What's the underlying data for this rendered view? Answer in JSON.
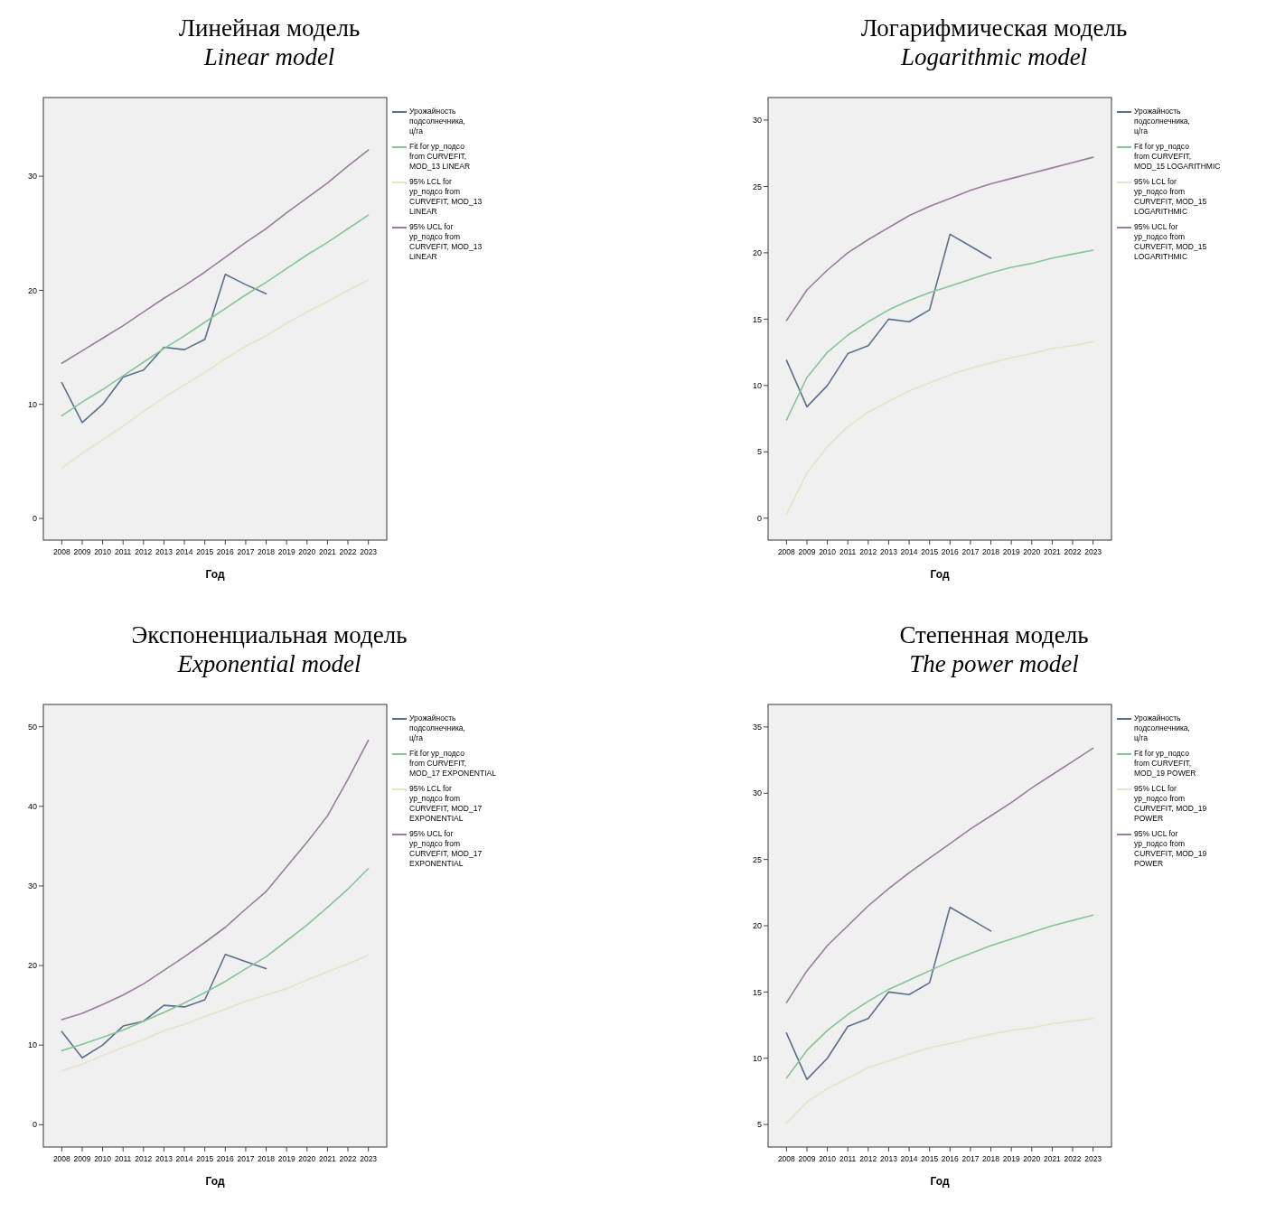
{
  "chart_data": [
    {
      "type": "line",
      "title": "Линейная модель",
      "subtitle": "Linear model",
      "xlabel": "Год",
      "legend": "right",
      "categories": [
        "2008",
        "2009",
        "2010",
        "2011",
        "2012",
        "2013",
        "2014",
        "2015",
        "2016",
        "2017",
        "2018",
        "2019",
        "2020",
        "2021",
        "2022",
        "2023"
      ],
      "ylim": [
        -1.9,
        36.9
      ],
      "yticks": [
        0,
        10,
        20,
        30
      ],
      "series": [
        {
          "name": "Урожайность подсолнечника, ц/га",
          "color": "#5b6f8c",
          "values": [
            11.9,
            8.4,
            10.0,
            12.4,
            13.0,
            15.0,
            14.8,
            15.7,
            21.4,
            20.5,
            19.7,
            null,
            null,
            null,
            null,
            null
          ]
        },
        {
          "name": "Fit for ур_подсо from CURVEFIT, MOD_13 LINEAR",
          "color": "#86c496",
          "values": [
            9.0,
            10.2,
            11.3,
            12.5,
            13.7,
            14.9,
            16.0,
            17.2,
            18.4,
            19.6,
            20.7,
            21.9,
            23.1,
            24.2,
            25.4,
            26.6
          ]
        },
        {
          "name": "95% LCL for ур_подсо from CURVEFIT, MOD_13 LINEAR",
          "color": "#e6e4c8",
          "values": [
            4.4,
            5.7,
            6.9,
            8.1,
            9.4,
            10.6,
            11.7,
            12.8,
            14.0,
            15.1,
            16.0,
            17.1,
            18.1,
            19.0,
            20.0,
            20.9
          ]
        },
        {
          "name": "95% UCL for ур_подсо from CURVEFIT, MOD_13 LINEAR",
          "color": "#9a7c9c",
          "values": [
            13.6,
            14.7,
            15.8,
            16.9,
            18.1,
            19.3,
            20.4,
            21.6,
            22.9,
            24.2,
            25.4,
            26.8,
            28.1,
            29.4,
            30.9,
            32.3
          ]
        }
      ]
    },
    {
      "type": "line",
      "title": "Логарифмическая модель",
      "subtitle": "Logarithmic model",
      "xlabel": "Год",
      "legend": "right",
      "categories": [
        "2008",
        "2009",
        "2010",
        "2011",
        "2012",
        "2013",
        "2014",
        "2015",
        "2016",
        "2017",
        "2018",
        "2019",
        "2020",
        "2021",
        "2022",
        "2023"
      ],
      "ylim": [
        -1.65,
        31.7
      ],
      "yticks": [
        0,
        5,
        10,
        15,
        20,
        25,
        30
      ],
      "series": [
        {
          "name": "Урожайность подсолнечника, ц/га",
          "color": "#5b6f8c",
          "values": [
            11.9,
            8.4,
            10.0,
            12.4,
            13.0,
            15.0,
            14.8,
            15.7,
            21.4,
            20.5,
            19.6,
            null,
            null,
            null,
            null,
            null
          ]
        },
        {
          "name": "Fit for ур_подсо from CURVEFIT, MOD_15 LOGARITHMIC",
          "color": "#86c496",
          "values": [
            7.4,
            10.6,
            12.5,
            13.8,
            14.8,
            15.7,
            16.4,
            17.0,
            17.5,
            18.0,
            18.5,
            18.9,
            19.2,
            19.6,
            19.9,
            20.2
          ]
        },
        {
          "name": "95% LCL for ур_подсо from CURVEFIT, MOD_15 LOGARITHMIC",
          "color": "#e6e4c8",
          "values": [
            0.3,
            3.4,
            5.4,
            6.9,
            8.0,
            8.8,
            9.6,
            10.2,
            10.8,
            11.3,
            11.7,
            12.1,
            12.4,
            12.8,
            13.0,
            13.3
          ]
        },
        {
          "name": "95% UCL for ур_подсо from CURVEFIT, MOD_15 LOGARITHMIC",
          "color": "#9a7c9c",
          "values": [
            14.9,
            17.2,
            18.7,
            20.0,
            21.0,
            21.9,
            22.8,
            23.5,
            24.1,
            24.7,
            25.2,
            25.6,
            26.0,
            26.4,
            26.8,
            27.2
          ]
        }
      ]
    },
    {
      "type": "line",
      "title": "Экспоненциальная модель",
      "subtitle": "Exponential model",
      "xlabel": "Год",
      "legend": "right",
      "categories": [
        "2008",
        "2009",
        "2010",
        "2011",
        "2012",
        "2013",
        "2014",
        "2015",
        "2016",
        "2017",
        "2018",
        "2019",
        "2020",
        "2021",
        "2022",
        "2023"
      ],
      "ylim": [
        -2.8,
        52.8
      ],
      "yticks": [
        0,
        10,
        20,
        30,
        40,
        50
      ],
      "series": [
        {
          "name": "Урожайность подсолнечника, ц/га",
          "color": "#5b6f8c",
          "values": [
            11.7,
            8.4,
            10.0,
            12.4,
            13.0,
            15.0,
            14.8,
            15.7,
            21.4,
            20.5,
            19.6,
            null,
            null,
            null,
            null,
            null
          ]
        },
        {
          "name": "Fit for ур_подсо from CURVEFIT, MOD_17 EXPONENTIAL",
          "color": "#86c496",
          "values": [
            9.3,
            10.1,
            11.0,
            11.9,
            13.0,
            14.1,
            15.3,
            16.6,
            18.0,
            19.6,
            21.1,
            23.1,
            25.1,
            27.3,
            29.6,
            32.2
          ]
        },
        {
          "name": "95% LCL for ур_подсо from CURVEFIT, MOD_17 EXPONENTIAL",
          "color": "#e6e4c8",
          "values": [
            6.8,
            7.6,
            8.7,
            9.7,
            10.7,
            11.8,
            12.6,
            13.6,
            14.5,
            15.5,
            16.3,
            17.1,
            18.2,
            19.2,
            20.2,
            21.3
          ]
        },
        {
          "name": "95% UCL for ур_подсо from CURVEFIT, MOD_17 EXPONENTIAL",
          "color": "#9a7c9c",
          "values": [
            13.2,
            14.0,
            15.1,
            16.3,
            17.7,
            19.4,
            21.1,
            22.9,
            24.8,
            27.1,
            29.3,
            32.4,
            35.5,
            38.8,
            43.4,
            48.3
          ]
        }
      ]
    },
    {
      "type": "line",
      "title": "Степенная модель",
      "subtitle": "The power model",
      "xlabel": "Год",
      "legend": "right",
      "categories": [
        "2008",
        "2009",
        "2010",
        "2011",
        "2012",
        "2013",
        "2014",
        "2015",
        "2016",
        "2017",
        "2018",
        "2019",
        "2020",
        "2021",
        "2022",
        "2023"
      ],
      "ylim": [
        3.3,
        36.7
      ],
      "yticks": [
        5,
        10,
        15,
        20,
        25,
        30,
        35
      ],
      "series": [
        {
          "name": "Урожайность подсолнечника, ц/га",
          "color": "#5b6f8c",
          "values": [
            11.9,
            8.4,
            10.0,
            12.4,
            13.0,
            15.0,
            14.8,
            15.7,
            21.4,
            20.5,
            19.6,
            null,
            null,
            null,
            null,
            null
          ]
        },
        {
          "name": "Fit for ур_подсо from CURVEFIT, MOD_19 POWER",
          "color": "#86c496",
          "values": [
            8.5,
            10.6,
            12.1,
            13.3,
            14.3,
            15.2,
            15.9,
            16.6,
            17.3,
            17.9,
            18.5,
            19.0,
            19.5,
            20.0,
            20.4,
            20.8
          ]
        },
        {
          "name": "95% LCL for ур_подсо from CURVEFIT, MOD_19 POWER",
          "color": "#e6e4c8",
          "values": [
            5.1,
            6.7,
            7.7,
            8.5,
            9.3,
            9.8,
            10.3,
            10.8,
            11.1,
            11.5,
            11.8,
            12.1,
            12.3,
            12.6,
            12.8,
            13.0
          ]
        },
        {
          "name": "95% UCL for ур_подсо from CURVEFIT, MOD_19 POWER",
          "color": "#9a7c9c",
          "values": [
            14.2,
            16.6,
            18.5,
            20.0,
            21.5,
            22.8,
            24.0,
            25.1,
            26.2,
            27.3,
            28.3,
            29.3,
            30.4,
            31.4,
            32.4,
            33.4
          ]
        }
      ]
    }
  ]
}
